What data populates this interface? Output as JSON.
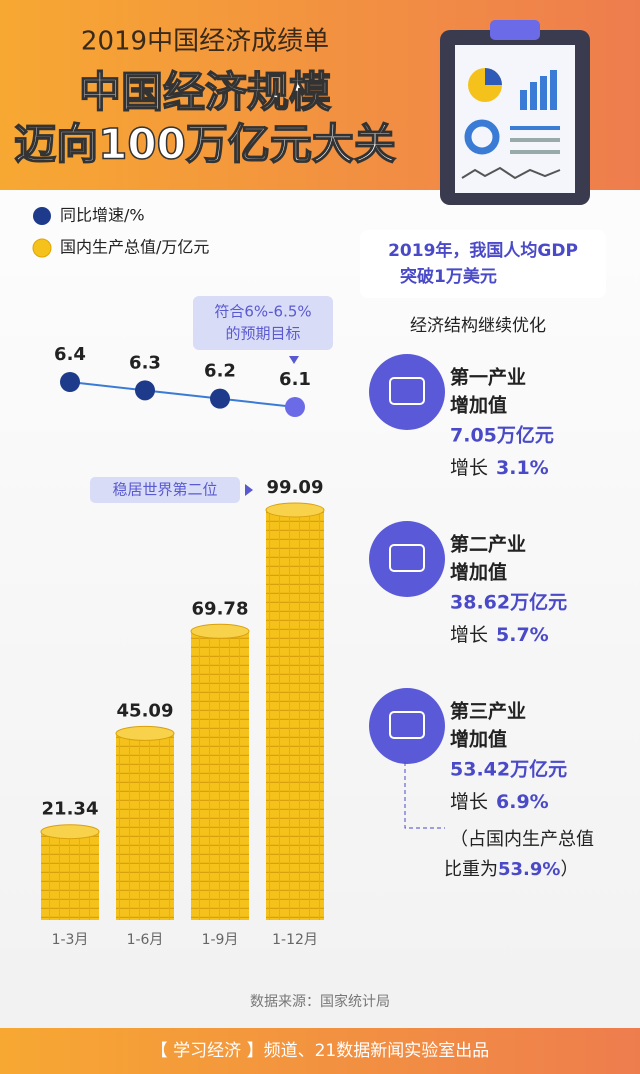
{
  "header": {
    "subtitle": "2019中国经济成绩单",
    "title_lines": [
      "中国经济规模",
      "迈向100万亿元大关"
    ]
  },
  "chart_data": [
    {
      "type": "line",
      "series": [
        {
          "name": "同比增速/%",
          "color": "#1e3a8a",
          "values": [
            6.4,
            6.3,
            6.2,
            6.1
          ]
        }
      ],
      "last_point_color": "#6b6be8",
      "annotation": [
        "符合6%-6.5%",
        "的预期目标"
      ]
    },
    {
      "type": "bar",
      "categories": [
        "1-3月",
        "1-6月",
        "1-9月",
        "1-12月"
      ],
      "series": [
        {
          "name": "国内生产总值/万亿元",
          "color": "#f5c21b",
          "values": [
            21.34,
            45.09,
            69.78,
            99.09
          ]
        }
      ],
      "annotation": "稳居世界第二位"
    }
  ],
  "gdp_per_capita": [
    "2019年，我国人均GDP",
    "突破1万美元"
  ],
  "structure_title": "经济结构继续优化",
  "sectors": [
    {
      "name": [
        "第一产业",
        "增加值"
      ],
      "value": "7.05万亿元",
      "growth_label": "增长",
      "growth": "3.1%"
    },
    {
      "name": [
        "第二产业",
        "增加值"
      ],
      "value": "38.62万亿元",
      "growth_label": "增长",
      "growth": "5.7%"
    },
    {
      "name": [
        "第三产业",
        "增加值"
      ],
      "value": "53.42万亿元",
      "growth_label": "增长",
      "growth": "6.9%"
    }
  ],
  "share_note": {
    "line1": "（占国内生产总值",
    "prefix": "比重为",
    "share": "53.9%",
    "suffix": "）"
  },
  "source": "数据来源：国家统计局",
  "footer": "【 学习经济 】频道、21数据新闻实验室出品"
}
